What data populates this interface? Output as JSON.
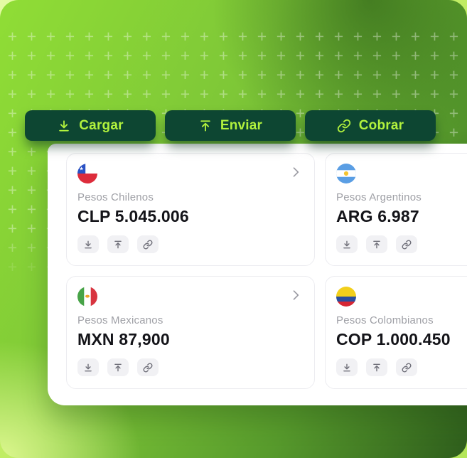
{
  "toolbar": {
    "buttons": [
      {
        "label": "Cargar",
        "icon": "download-icon"
      },
      {
        "label": "Enviar",
        "icon": "upload-icon"
      },
      {
        "label": "Cobrar",
        "icon": "link-icon"
      }
    ]
  },
  "wallets": [
    {
      "currency_name": "Pesos Chilenos",
      "balance": "CLP 5.045.006",
      "flag": "chile-flag"
    },
    {
      "currency_name": "Pesos Argentinos",
      "balance": "ARG 6.987",
      "flag": "argentina-flag"
    },
    {
      "currency_name": "Pesos Mexicanos",
      "balance": "MXN 87,900",
      "flag": "mexico-flag"
    },
    {
      "currency_name": "Pesos Colombianos",
      "balance": "COP 1.000.450",
      "flag": "colombia-flag"
    }
  ],
  "card_action_icons": [
    "download-icon",
    "upload-icon",
    "link-icon"
  ],
  "colors": {
    "button_bg": "#0d4632",
    "button_text": "#b2f23d",
    "bg_lime": "#8fdc36",
    "bg_dark_green": "#2e5d1c",
    "label_gray": "#9fa0a6",
    "balance_black": "#141419"
  }
}
